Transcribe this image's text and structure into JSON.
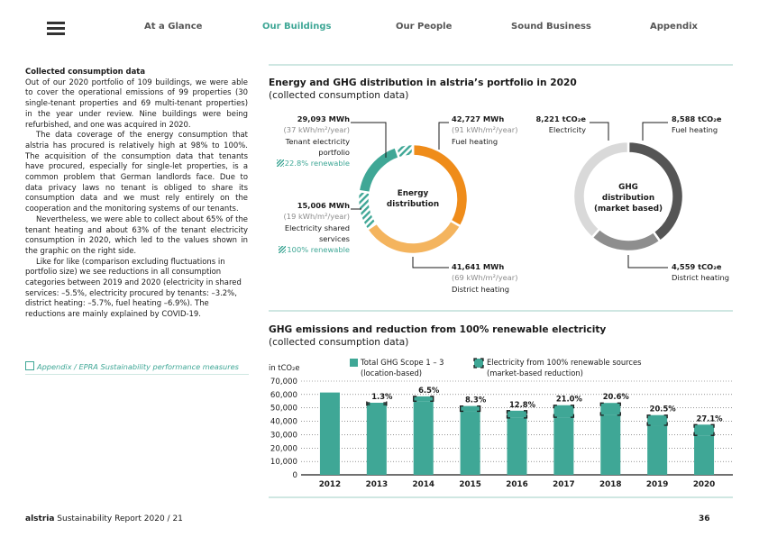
{
  "nav": {
    "items": [
      "At a Glance",
      "Our Buildings",
      "Our People",
      "Sound Business",
      "Appendix"
    ],
    "active_index": 1
  },
  "left": {
    "heading": "Collected consumption data",
    "p1": "Out of our 2020 portfolio of 109 buildings, we were able to cover the operational emissions of 99 properties (30 single-tenant properties and 69 multi-tenant properties) in the year under review. Nine buildings were being refurbished, and one was acquired in 2020.",
    "p2": "The data coverage of the energy consumption that alstria has procured is relatively high at 98% to 100%. The acquisition of the consumption data that tenants have procured, especially for single-let properties, is a common problem that German landlords face. Due to data privacy laws no tenant is obliged to share its consumption data and we must rely entirely on the cooperation and the monitoring systems of our tenants.",
    "p3": "Nevertheless, we were able to collect about 65% of the tenant heating and about 63% of the tenant electricity consumption in 2020, which led to the values shown in the graphic on the right side.",
    "p4": "Like for like (comparison excluding fluctuations in portfolio size) we see reductions in all consumption categories between 2019 and 2020 (electricity in shared services: –5.5%, electricity procured by tenants: –3.2%, district heating: –5.7%, fuel heating –6.9%). The reductions are mainly explained by COVID-19.",
    "link": "Appendix / EPRA Sustainability performance measures"
  },
  "energy": {
    "title": "Energy and GHG distribution in alstria’s portfolio in 2020",
    "subtitle": "(collected consumption data)",
    "center": [
      "Energy",
      "distribution"
    ],
    "tenant_elec": {
      "value": "29,093 MWh",
      "intensity": "(37 kWh/m²/year)",
      "name1": "Tenant electricity",
      "name2": "portfolio",
      "renewable": "22.8% renewable"
    },
    "shared_elec": {
      "value": "15,006 MWh",
      "intensity": "(19 kWh/m²/year)",
      "name1": "Electricity shared",
      "name2": "services",
      "renewable": "100% renewable"
    },
    "fuel": {
      "value": "42,727 MWh",
      "intensity": "(91 kWh/m²/year)",
      "name": "Fuel heating"
    },
    "district": {
      "value": "41,641 MWh",
      "intensity": "(69 kWh/m²/year)",
      "name": "District heating"
    }
  },
  "ghg": {
    "center": [
      "GHG",
      "distribution",
      "(market based)"
    ],
    "electricity": {
      "value": "8,221 tCO₂e",
      "name": "Electricity"
    },
    "fuel": {
      "value": "8,588 tCO₂e",
      "name": "Fuel heating"
    },
    "district": {
      "value": "4,559 tCO₂e",
      "name": "District heating"
    }
  },
  "bar_section": {
    "title": "GHG emissions and reduction from 100% renewable electricity",
    "subtitle": "(collected consumption data)",
    "legend_total": [
      "Total GHG Scope 1 – 3",
      "(location-based)"
    ],
    "legend_renew": [
      "Electricity from 100% renewable sources",
      "(market-based reduction)"
    ]
  },
  "colors": {
    "teal": "#3fa796",
    "orange": "#ef8c1a",
    "light_orange": "#f4b45e",
    "dark_gray": "#555555",
    "mid_gray": "#8e8e8e",
    "light_gray": "#d9d9d9"
  },
  "chart_data": [
    {
      "type": "pie",
      "title": "Energy distribution",
      "unit": "MWh",
      "categories": [
        "Fuel heating",
        "District heating",
        "Electricity shared services",
        "Tenant electricity portfolio"
      ],
      "values": [
        42727,
        41641,
        15006,
        29093
      ],
      "renewable_share_pct": {
        "Electricity shared services": 100,
        "Tenant electricity portfolio": 22.8
      }
    },
    {
      "type": "pie",
      "title": "GHG distribution (market based)",
      "unit": "tCO₂e",
      "categories": [
        "Fuel heating",
        "District heating",
        "Electricity"
      ],
      "values": [
        8588,
        4559,
        8221
      ]
    },
    {
      "type": "bar",
      "ylabel": "in tCO₂e",
      "categories": [
        "2012",
        "2013",
        "2014",
        "2015",
        "2016",
        "2017",
        "2018",
        "2019",
        "2020"
      ],
      "yticks": [
        "70,000",
        "60,000",
        "50,000",
        "40,000",
        "30,000",
        "20,000",
        "10,000",
        "0"
      ],
      "ylim": [
        0,
        70000
      ],
      "series": [
        {
          "name": "Total GHG Scope 1 – 3 (location-based)",
          "values": [
            61500,
            52500,
            55000,
            47500,
            42500,
            43000,
            44500,
            37000,
            29500
          ]
        },
        {
          "name": "Electricity from 100% renewable sources (market-based reduction)",
          "values": [
            0,
            700,
            3600,
            3900,
            5400,
            9000,
            9200,
            7600,
            8000
          ]
        }
      ],
      "data_labels": [
        "",
        "1.3%",
        "6.5%",
        "8.3%",
        "12.8%",
        "21.0%",
        "20.6%",
        "20.5%",
        "27.1%"
      ]
    }
  ],
  "footer": {
    "brand": "alstria",
    "report": "Sustainability Report 2020 / 21",
    "page": "36"
  }
}
